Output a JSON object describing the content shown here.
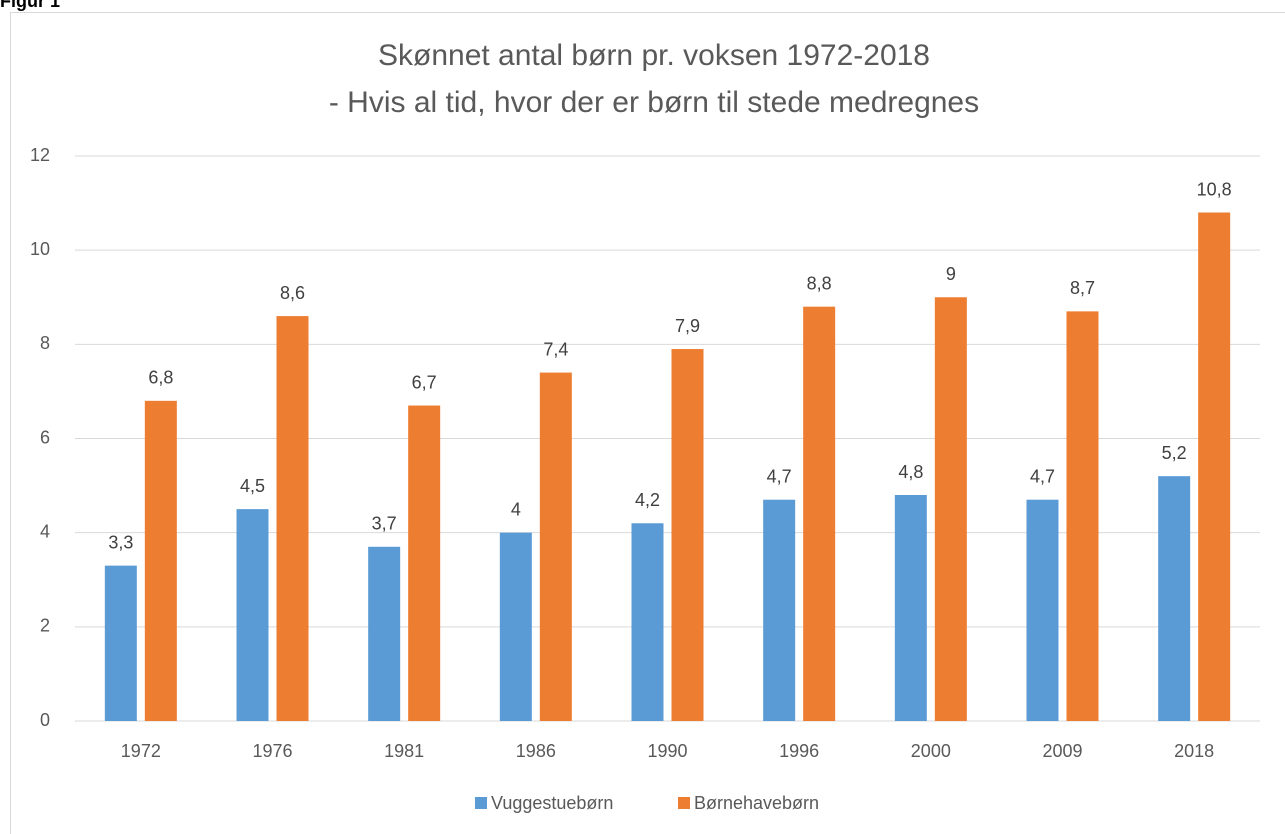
{
  "figure_label": "Figur 1",
  "chart_data": {
    "type": "bar",
    "title": [
      "Skønnet antal børn pr. voksen 1972-2018",
      "- Hvis al tid, hvor der er børn til stede medregnes"
    ],
    "categories": [
      "1972",
      "1976",
      "1981",
      "1986",
      "1990",
      "1996",
      "2000",
      "2009",
      "2018"
    ],
    "series": [
      {
        "name": "Vuggestuebørn",
        "color": "#5b9bd5",
        "values": [
          3.3,
          4.5,
          3.7,
          4,
          4.2,
          4.7,
          4.8,
          4.7,
          5.2
        ],
        "value_labels": [
          "3,3",
          "4,5",
          "3,7",
          "4",
          "4,2",
          "4,7",
          "4,8",
          "4,7",
          "5,2"
        ]
      },
      {
        "name": "Børnehavebørn",
        "color": "#ed7d31",
        "values": [
          6.8,
          8.6,
          6.7,
          7.4,
          7.9,
          8.8,
          9,
          8.7,
          10.8
        ],
        "value_labels": [
          "6,8",
          "8,6",
          "6,7",
          "7,4",
          "7,9",
          "8,8",
          "9",
          "8,7",
          "10,8"
        ]
      }
    ],
    "ylim": [
      0,
      12
    ],
    "yticks": [
      0,
      2,
      4,
      6,
      8,
      10,
      12
    ],
    "grid": true,
    "legend": "bottom"
  }
}
